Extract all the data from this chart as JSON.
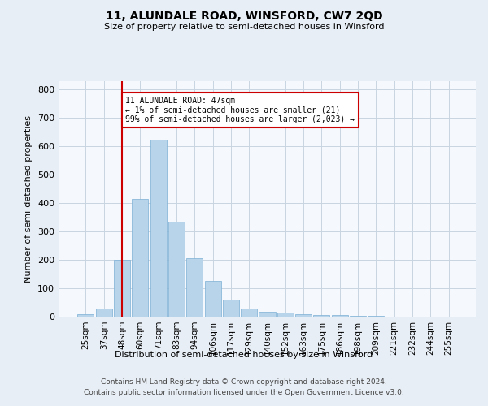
{
  "title": "11, ALUNDALE ROAD, WINSFORD, CW7 2QD",
  "subtitle": "Size of property relative to semi-detached houses in Winsford",
  "xlabel": "Distribution of semi-detached houses by size in Winsford",
  "ylabel": "Number of semi-detached properties",
  "footnote1": "Contains HM Land Registry data © Crown copyright and database right 2024.",
  "footnote2": "Contains public sector information licensed under the Open Government Licence v3.0.",
  "categories": [
    "25sqm",
    "37sqm",
    "48sqm",
    "60sqm",
    "71sqm",
    "83sqm",
    "94sqm",
    "106sqm",
    "117sqm",
    "129sqm",
    "140sqm",
    "152sqm",
    "163sqm",
    "175sqm",
    "186sqm",
    "198sqm",
    "209sqm",
    "221sqm",
    "232sqm",
    "244sqm",
    "255sqm"
  ],
  "values": [
    10,
    30,
    200,
    415,
    625,
    335,
    205,
    125,
    60,
    30,
    18,
    14,
    10,
    7,
    6,
    3,
    2,
    1,
    1,
    0,
    0
  ],
  "bar_color": "#b8d4ea",
  "bar_edge_color": "#7aafd4",
  "highlight_x": "48sqm",
  "highlight_color": "#cc0000",
  "property_label": "11 ALUNDALE ROAD: 47sqm",
  "annotation_line1": "← 1% of semi-detached houses are smaller (21)",
  "annotation_line2": "99% of semi-detached houses are larger (2,023) →",
  "annotation_box_color": "#cc0000",
  "ylim": [
    0,
    830
  ],
  "yticks": [
    0,
    100,
    200,
    300,
    400,
    500,
    600,
    700,
    800
  ],
  "background_color": "#e8eef5",
  "plot_background": "#f5f8fc",
  "grid_color": "#c8d4e0"
}
